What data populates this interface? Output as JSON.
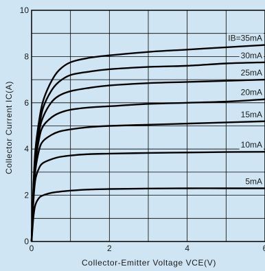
{
  "chart_data": {
    "type": "line",
    "xlabel": "Collector-Emitter Voltage VCE(V)",
    "ylabel": "Collector Current IC(A)",
    "xlim": [
      0,
      6
    ],
    "ylim": [
      0,
      10
    ],
    "x_ticks": [
      "0",
      "2",
      "4",
      "6"
    ],
    "y_ticks": [
      "0",
      "2",
      "4",
      "6",
      "8",
      "10"
    ],
    "grid": true,
    "legend": "inline labels at right end of curves",
    "series": [
      {
        "name": "IB=35mA",
        "x": [
          0,
          0.05,
          0.1,
          0.2,
          0.3,
          0.5,
          0.7,
          1.0,
          1.5,
          2.0,
          3.0,
          4.0,
          5.0,
          6.0
        ],
        "y": [
          0,
          2.5,
          4.0,
          5.3,
          6.1,
          6.9,
          7.4,
          7.75,
          7.95,
          8.05,
          8.2,
          8.3,
          8.4,
          8.5
        ]
      },
      {
        "name": "30mA",
        "x": [
          0,
          0.05,
          0.1,
          0.2,
          0.3,
          0.5,
          0.7,
          1.0,
          1.5,
          2.0,
          3.0,
          4.0,
          5.0,
          6.0
        ],
        "y": [
          0,
          2.4,
          3.8,
          5.0,
          5.8,
          6.5,
          6.9,
          7.2,
          7.35,
          7.45,
          7.55,
          7.6,
          7.7,
          7.75
        ]
      },
      {
        "name": "25mA",
        "x": [
          0,
          0.05,
          0.1,
          0.2,
          0.3,
          0.5,
          0.7,
          1.0,
          1.5,
          2.0,
          3.0,
          4.0,
          5.0,
          6.0
        ],
        "y": [
          0,
          2.3,
          3.6,
          4.8,
          5.4,
          6.0,
          6.3,
          6.5,
          6.65,
          6.75,
          6.85,
          6.9,
          6.95,
          7.0
        ]
      },
      {
        "name": "20mA",
        "x": [
          0,
          0.05,
          0.1,
          0.2,
          0.3,
          0.5,
          0.7,
          1.0,
          1.5,
          2.0,
          3.0,
          4.0,
          5.0,
          6.0
        ],
        "y": [
          0,
          2.2,
          3.4,
          4.5,
          5.0,
          5.35,
          5.55,
          5.7,
          5.8,
          5.85,
          5.95,
          6.0,
          6.05,
          6.15
        ]
      },
      {
        "name": "15mA",
        "x": [
          0,
          0.05,
          0.1,
          0.2,
          0.3,
          0.5,
          0.7,
          1.0,
          1.5,
          2.0,
          3.0,
          4.0,
          5.0,
          6.0
        ],
        "y": [
          0,
          2.0,
          3.1,
          4.0,
          4.35,
          4.6,
          4.75,
          4.85,
          4.95,
          5.0,
          5.05,
          5.1,
          5.15,
          5.2
        ]
      },
      {
        "name": "10mA",
        "x": [
          0,
          0.05,
          0.1,
          0.2,
          0.3,
          0.5,
          0.7,
          1.0,
          1.5,
          2.0,
          3.0,
          4.0,
          5.0,
          6.0
        ],
        "y": [
          0,
          1.8,
          2.7,
          3.2,
          3.4,
          3.55,
          3.65,
          3.72,
          3.78,
          3.8,
          3.83,
          3.85,
          3.87,
          3.88
        ]
      },
      {
        "name": "5mA",
        "x": [
          0,
          0.05,
          0.1,
          0.2,
          0.3,
          0.5,
          0.7,
          1.0,
          1.5,
          2.0,
          3.0,
          4.0,
          5.0,
          6.0
        ],
        "y": [
          0,
          1.1,
          1.6,
          1.9,
          2.0,
          2.1,
          2.15,
          2.2,
          2.25,
          2.27,
          2.29,
          2.3,
          2.3,
          2.3
        ]
      }
    ]
  }
}
